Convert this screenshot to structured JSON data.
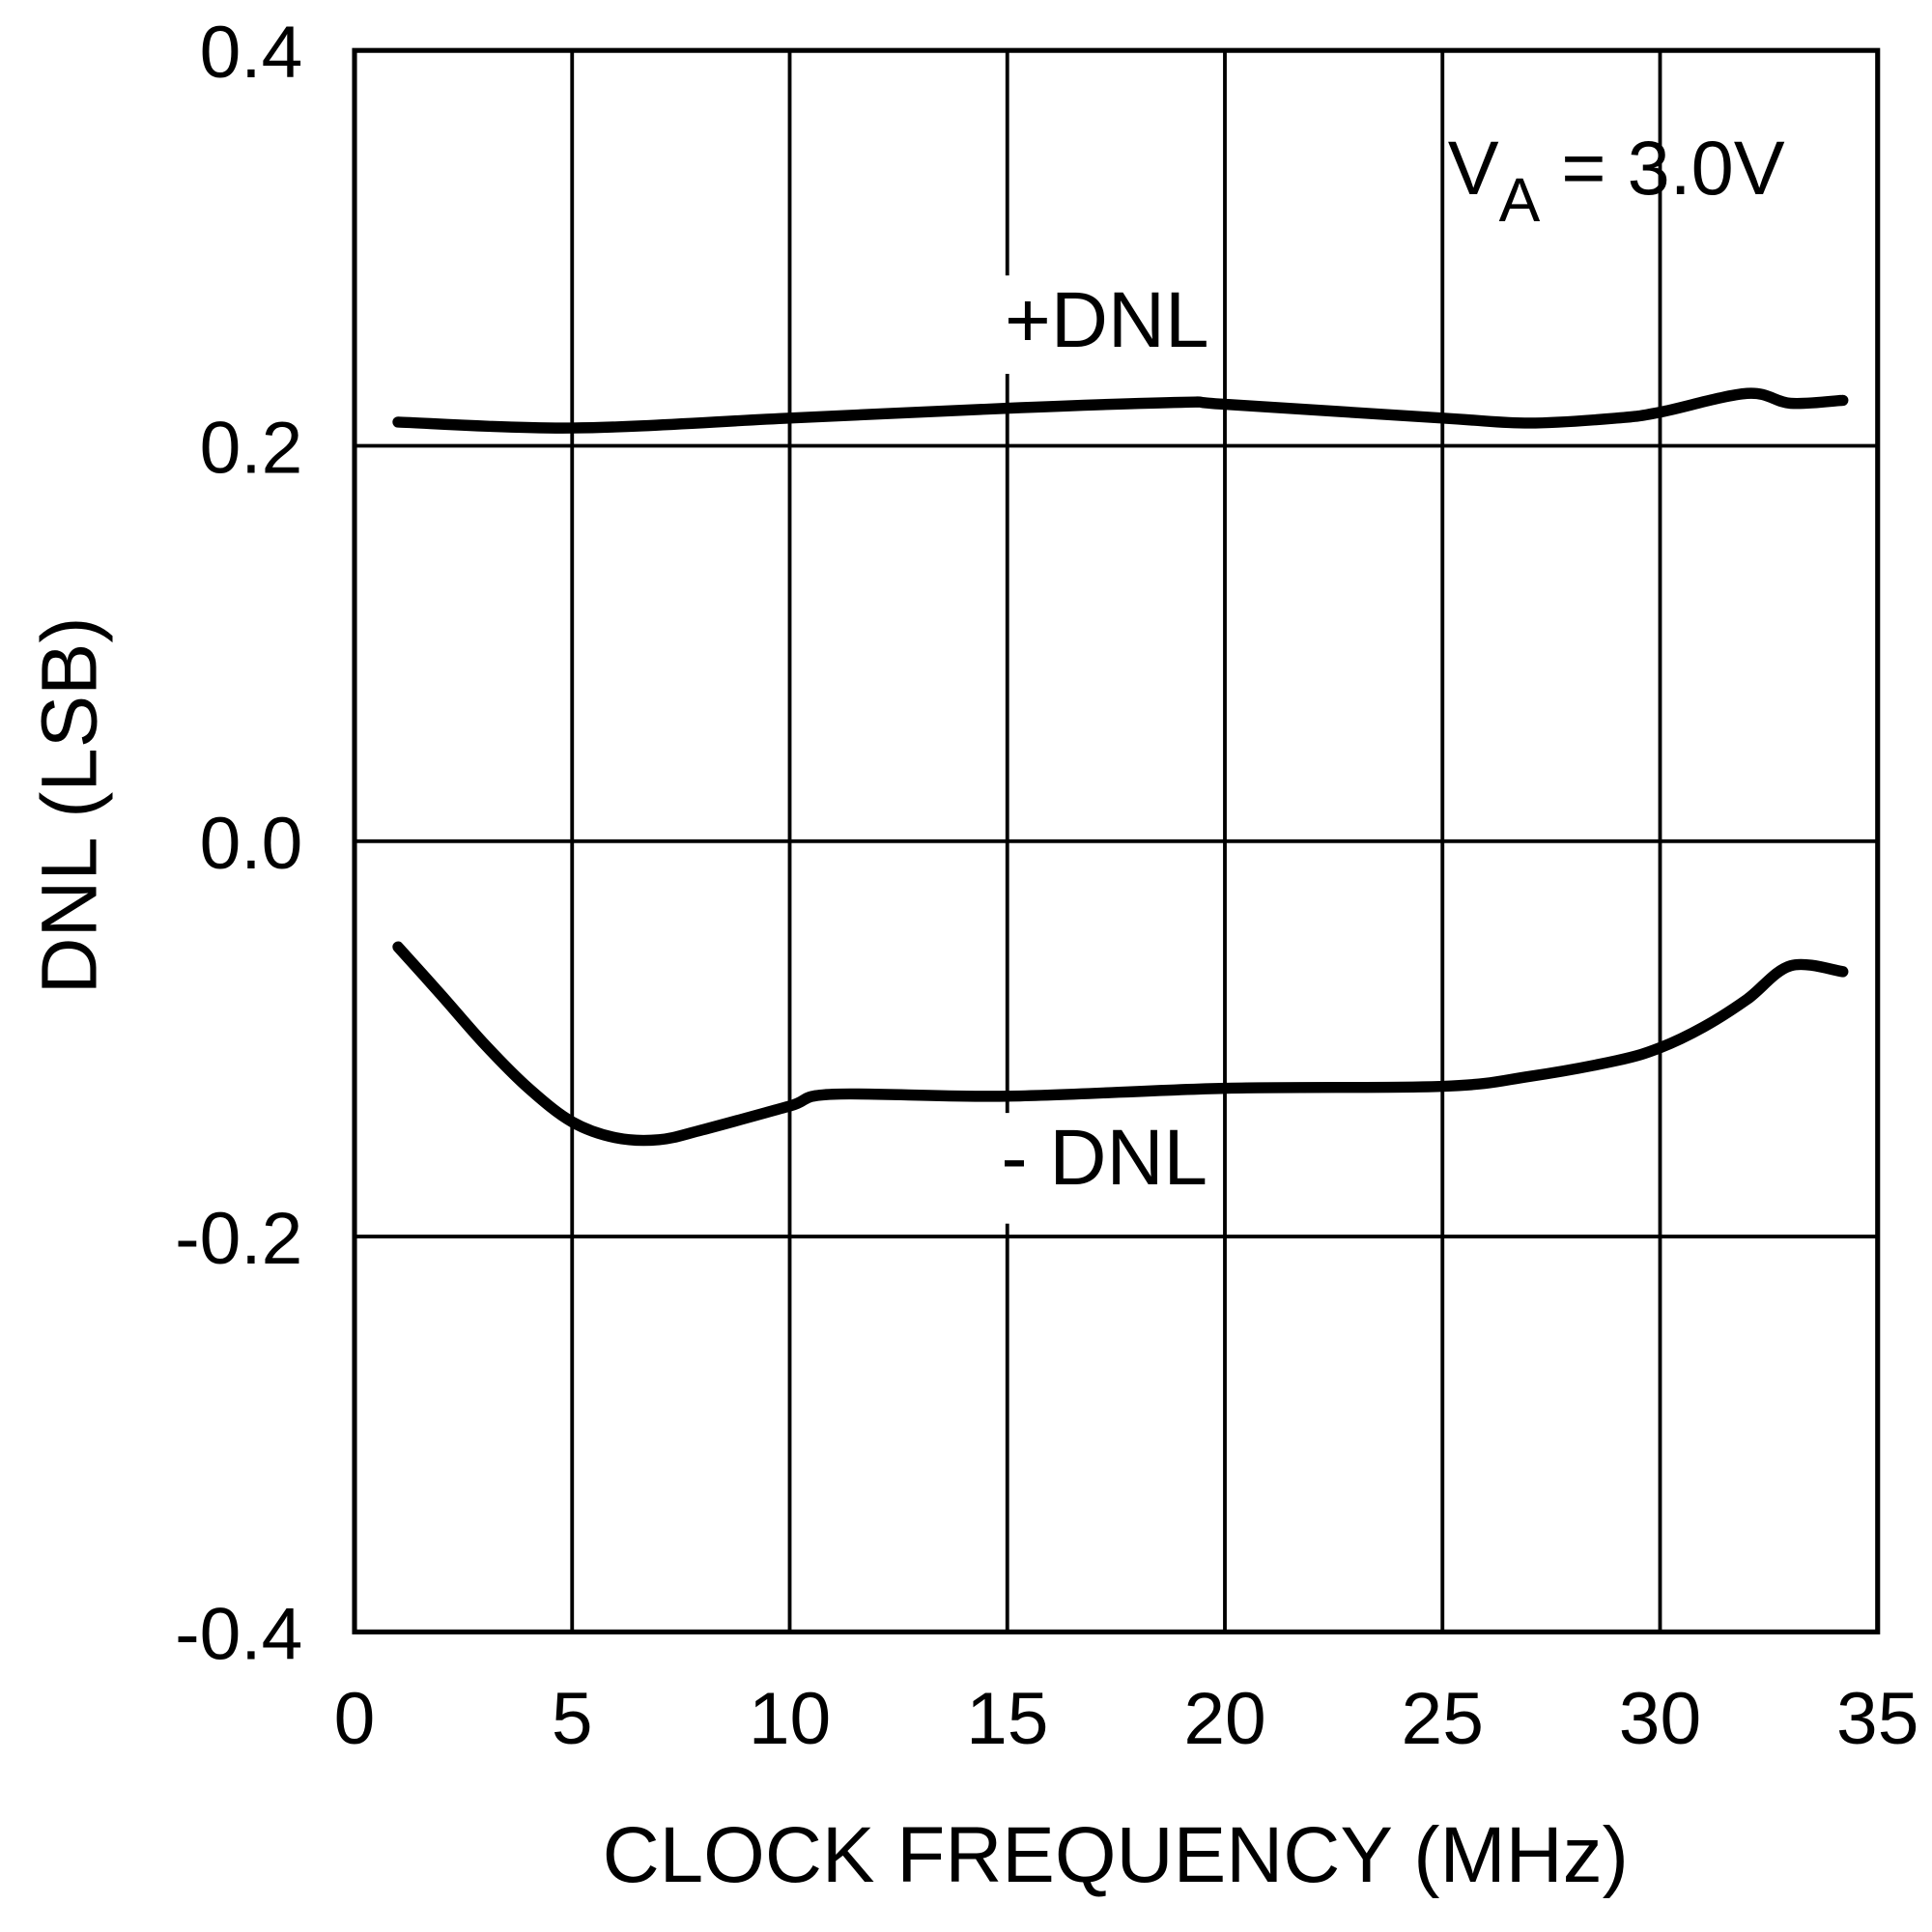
{
  "chart_data": {
    "type": "line",
    "title": "",
    "xlabel": "CLOCK FREQUENCY (MHz)",
    "ylabel": "DNL (LSB)",
    "xlim": [
      0,
      35
    ],
    "ylim": [
      -0.4,
      0.4
    ],
    "xticks": [
      0,
      5,
      10,
      15,
      20,
      25,
      30,
      35
    ],
    "xtick_labels": [
      "0",
      "5",
      "10",
      "15",
      "20",
      "25",
      "30",
      "35"
    ],
    "yticks": [
      -0.4,
      -0.2,
      0.0,
      0.2,
      0.4
    ],
    "ytick_labels": [
      "-0.4",
      "-0.2",
      "0.0",
      "0.2",
      "0.4"
    ],
    "grid": true,
    "line_color": "#000000",
    "annotation": {
      "main": "V",
      "sub": "A",
      "rest": " = 3.0V"
    },
    "series": [
      {
        "name": "+DNL",
        "x": [
          1,
          5,
          10,
          15,
          19,
          20,
          25,
          27,
          29,
          30,
          32,
          33,
          34.2
        ],
        "y": [
          0.212,
          0.209,
          0.214,
          0.219,
          0.222,
          0.221,
          0.214,
          0.2115,
          0.214,
          0.217,
          0.2265,
          0.2215,
          0.223
        ]
      },
      {
        "name": "- DNL",
        "x": [
          1,
          2,
          3,
          4,
          5,
          6,
          7,
          8,
          10,
          11,
          15,
          20,
          25,
          27,
          29,
          30,
          31,
          32,
          33,
          34.2
        ],
        "y": [
          -0.0535,
          -0.078,
          -0.103,
          -0.125,
          -0.142,
          -0.15,
          -0.151,
          -0.146,
          -0.134,
          -0.128,
          -0.129,
          -0.125,
          -0.124,
          -0.119,
          -0.111,
          -0.1045,
          -0.094,
          -0.08,
          -0.063,
          -0.066
        ]
      }
    ]
  }
}
